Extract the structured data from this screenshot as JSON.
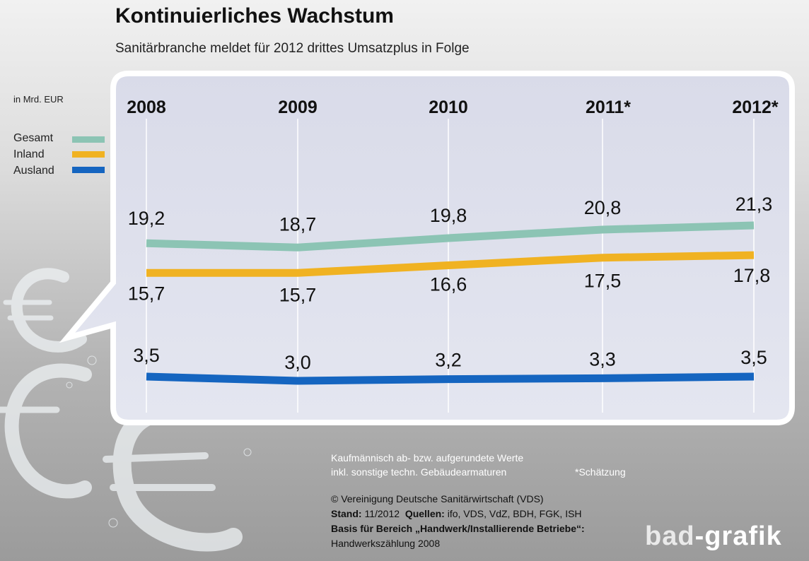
{
  "title": "Kontinuierliches Wachstum",
  "subtitle": "Sanitärbranche meldet für 2012 drittes Umsatzplus in Folge",
  "unit_label": "in Mrd. EUR",
  "notes": {
    "rounding_1": "Kaufmännisch ab- bzw. aufgerundete Werte",
    "rounding_2": "inkl. sonstige techn. Gebäudearmaturen",
    "estimate": "*Schätzung"
  },
  "source": {
    "copyright": "© Vereinigung Deutsche Sanitärwirtschaft (VDS)",
    "stand_label": "Stand:",
    "stand_value": "11/2012",
    "quellen_label": "Quellen:",
    "quellen_value": "ifo, VDS, VdZ, BDH, FGK, ISH",
    "basis_label": "Basis für Bereich „Handwerk/Installierende Betriebe“:",
    "basis_value": "Handwerkszählung 2008"
  },
  "logo": {
    "part1": "bad",
    "part2": "-grafik"
  },
  "colors": {
    "Gesamt": "#8cc4b4",
    "Inland": "#f0b222",
    "Ausland": "#1565c0"
  },
  "chart_data": {
    "type": "line",
    "categories": [
      "2008",
      "2009",
      "2010",
      "2011*",
      "2012*"
    ],
    "series": [
      {
        "name": "Gesamt",
        "values": [
          19.2,
          18.7,
          19.8,
          20.8,
          21.3
        ],
        "labels": [
          "19,2",
          "18,7",
          "19,8",
          "20,8",
          "21,3"
        ]
      },
      {
        "name": "Inland",
        "values": [
          15.7,
          15.7,
          16.6,
          17.5,
          17.8
        ],
        "labels": [
          "15,7",
          "15,7",
          "16,6",
          "17,5",
          "17,8"
        ]
      },
      {
        "name": "Ausland",
        "values": [
          3.5,
          3.0,
          3.2,
          3.3,
          3.5
        ],
        "labels": [
          "3,5",
          "3,0",
          "3,2",
          "3,3",
          "3,5"
        ]
      }
    ],
    "ylabel": "in Mrd. EUR",
    "legend": "left",
    "grid": true
  }
}
